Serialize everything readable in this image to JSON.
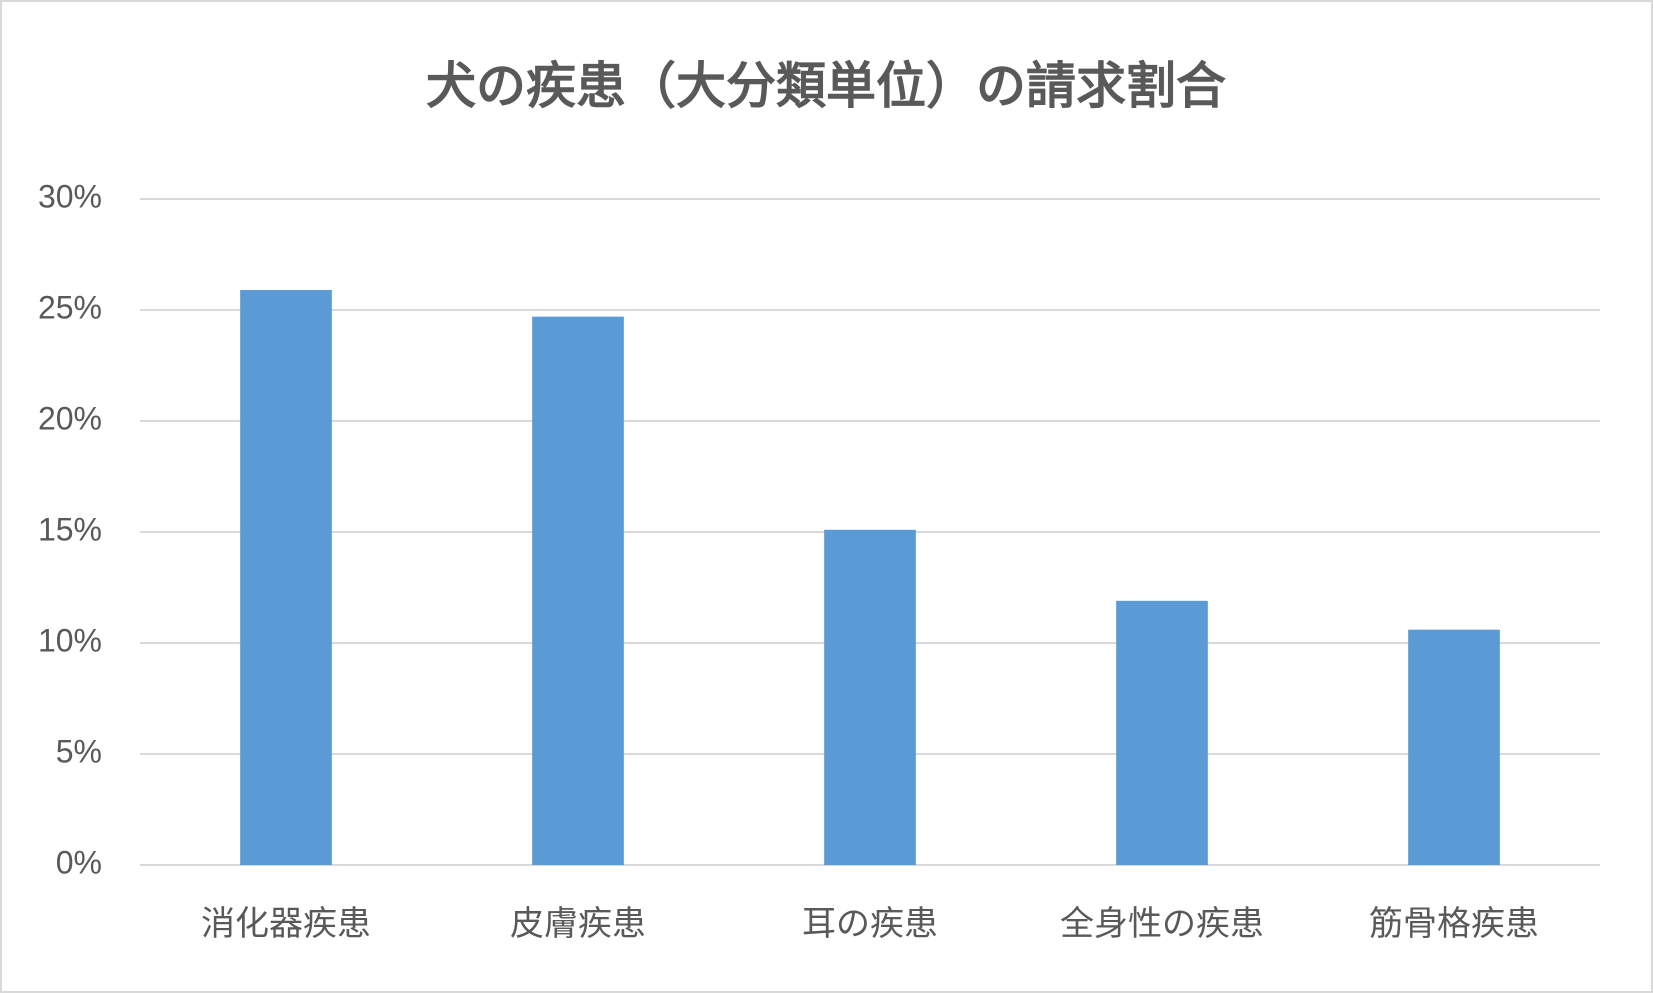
{
  "chart_data": {
    "type": "bar",
    "title": "犬の疾患（大分類単位）の請求割合",
    "categories": [
      "消化器疾患",
      "皮膚疾患",
      "耳の疾患",
      "全身性の疾患",
      "筋骨格疾患"
    ],
    "values": [
      25.9,
      24.7,
      15.1,
      11.9,
      10.6
    ],
    "color": "#5b9bd5",
    "ylim": [
      0,
      30
    ],
    "yticks": [
      {
        "value": 0,
        "label": "0%"
      },
      {
        "value": 5,
        "label": "5%"
      },
      {
        "value": 10,
        "label": "10%"
      },
      {
        "value": 15,
        "label": "15%"
      },
      {
        "value": 20,
        "label": "20%"
      },
      {
        "value": 25,
        "label": "25%"
      },
      {
        "value": 30,
        "label": "30%"
      }
    ],
    "grid": true
  }
}
